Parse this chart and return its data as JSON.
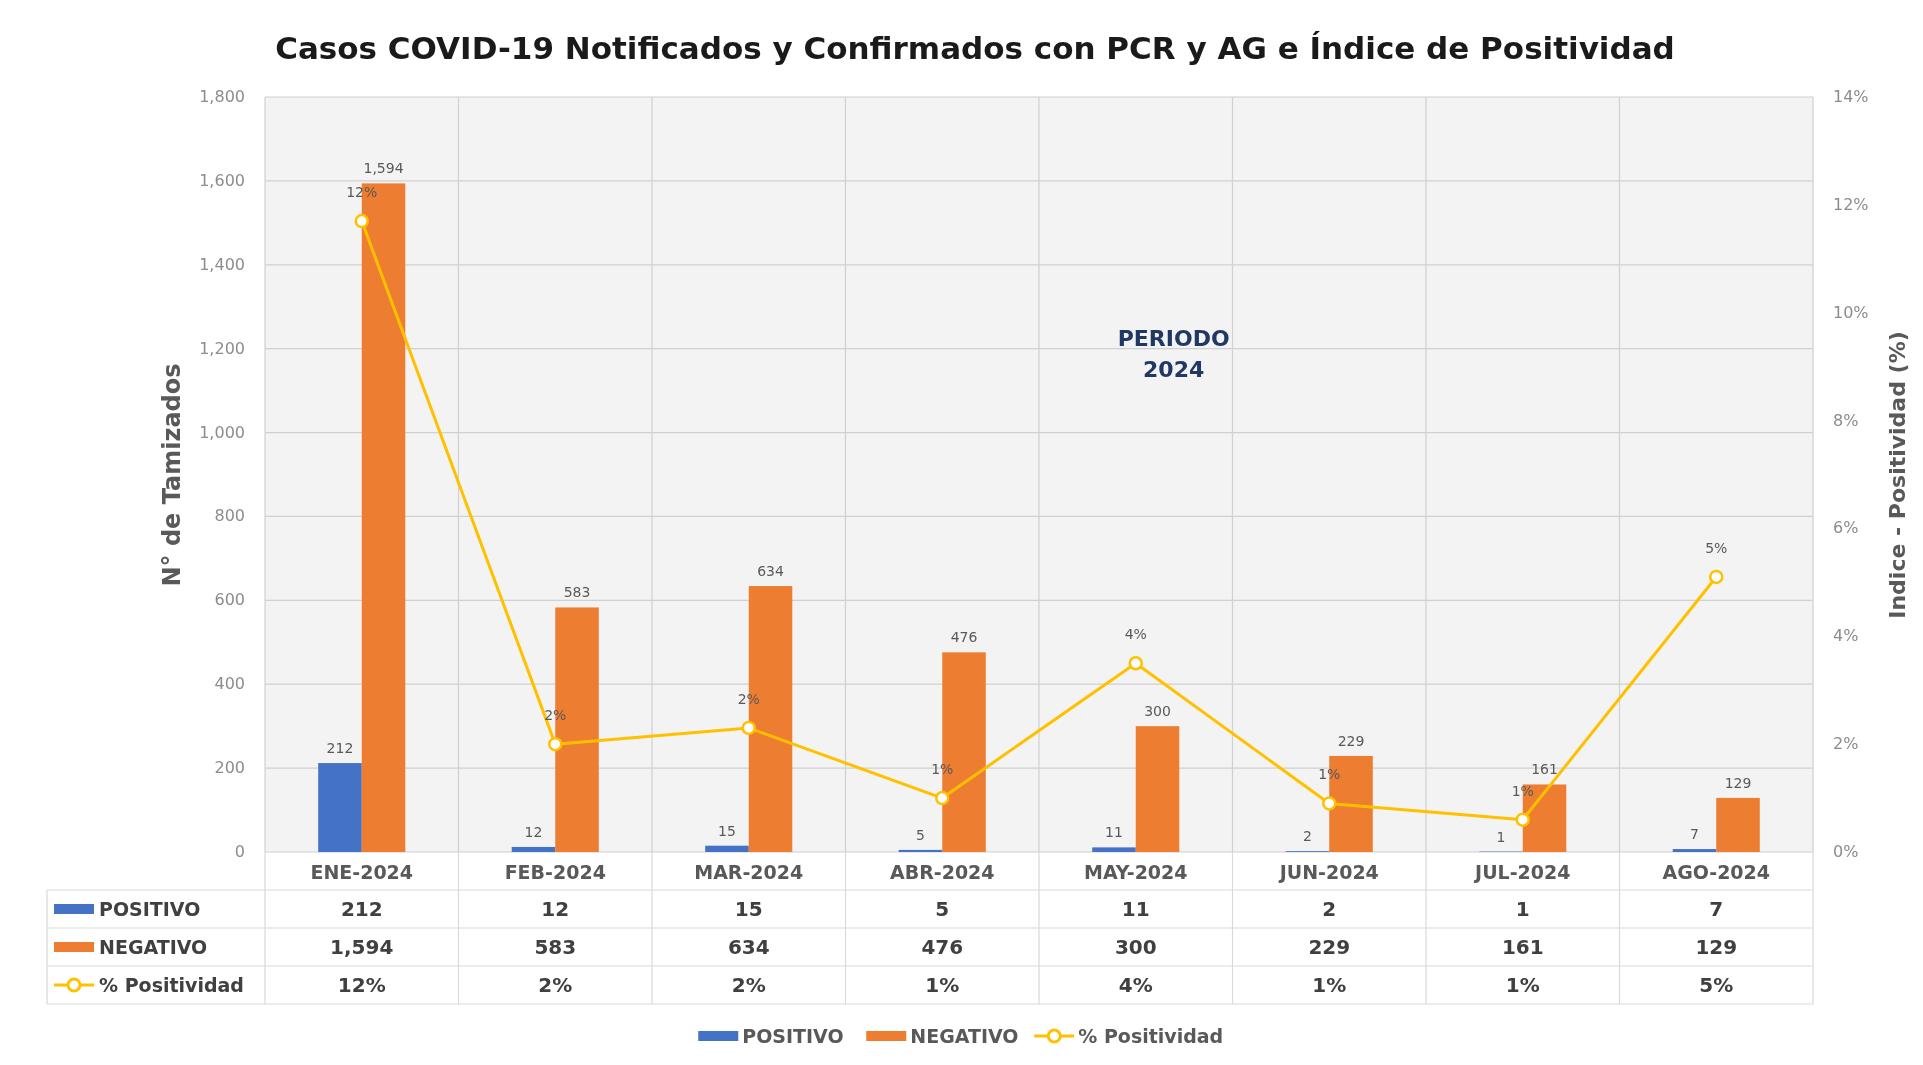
{
  "chart_data": {
    "type": "bar",
    "title": "Casos COVID-19 Notificados y Confirmados con PCR y AG e Índice de Positividad",
    "ylabel": "N° de Tamizados",
    "y2label": "Indice - Positividad (%)",
    "categories": [
      "ENE-2024",
      "FEB-2024",
      "MAR-2024",
      "ABR-2024",
      "MAY-2024",
      "JUN-2024",
      "JUL-2024",
      "AGO-2024"
    ],
    "series": [
      {
        "name": "POSITIVO",
        "color": "#4472c4",
        "values": [
          212,
          12,
          15,
          5,
          11,
          2,
          1,
          7
        ],
        "value_labels": [
          "212",
          "12",
          "15",
          "5",
          "11",
          "2",
          "1",
          "7"
        ]
      },
      {
        "name": "NEGATIVO",
        "color": "#ed7d31",
        "values": [
          1594,
          583,
          634,
          476,
          300,
          229,
          161,
          129
        ],
        "value_labels": [
          "1,594",
          "583",
          "634",
          "476",
          "300",
          "229",
          "161",
          "129"
        ]
      },
      {
        "name": "% Positividad",
        "type": "line",
        "axis": "y2",
        "color": "#ffc000",
        "values": [
          11.7,
          2.0,
          2.3,
          1.0,
          3.5,
          0.9,
          0.6,
          5.1
        ],
        "value_labels": [
          "12%",
          "2%",
          "2%",
          "1%",
          "4%",
          "1%",
          "1%",
          "5%"
        ]
      }
    ],
    "ylim": [
      0,
      1800
    ],
    "yticks": [
      0,
      200,
      400,
      600,
      800,
      {
        "value": 1000,
        "label": "1,000"
      },
      {
        "value": 1200,
        "label": "1,200"
      },
      {
        "value": 1400,
        "label": "1,400"
      },
      {
        "value": 1600,
        "label": "1,600"
      },
      {
        "value": 1800,
        "label": "1,800"
      }
    ],
    "y2lim": [
      0,
      14
    ],
    "y2ticks": [
      {
        "value": 0,
        "label": "0%"
      },
      {
        "value": 2,
        "label": "2%"
      },
      {
        "value": 4,
        "label": "4%"
      },
      {
        "value": 6,
        "label": "6%"
      },
      {
        "value": 8,
        "label": "8%"
      },
      {
        "value": 10,
        "label": "10%"
      },
      {
        "value": 12,
        "label": "12%"
      },
      {
        "value": 14,
        "label": "14%"
      }
    ],
    "grid": true,
    "legend": "bottom",
    "marker": "circle",
    "annotations": [
      "PERIODO 2024"
    ]
  }
}
